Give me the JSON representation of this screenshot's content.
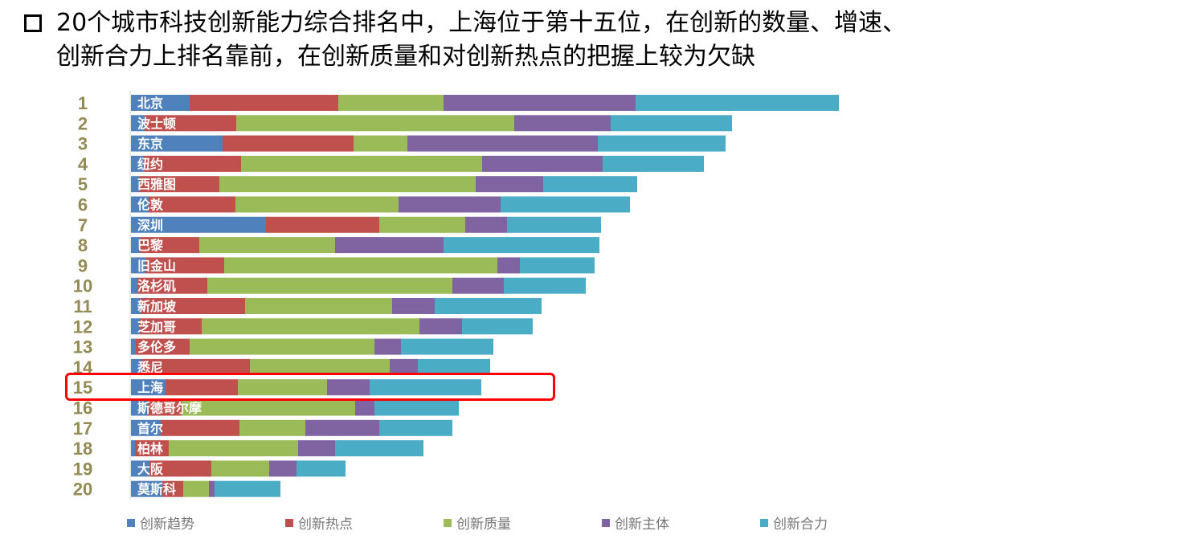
{
  "header": {
    "title_line1": "20个城市科技创新能力综合排名中，上海位于第十五位，在创新的数量、增速、",
    "title_line2": "创新合力上排名靠前，在创新质量和对创新热点的把握上较为欠缺"
  },
  "chart_data": {
    "type": "bar",
    "orientation": "horizontal",
    "stacked": true,
    "title": "",
    "xlabel": "",
    "ylabel": "",
    "grid": false,
    "legend_position": "bottom",
    "highlight": "上海",
    "ranks": [
      "1",
      "2",
      "3",
      "4",
      "5",
      "6",
      "7",
      "8",
      "9",
      "10",
      "11",
      "12",
      "13",
      "14",
      "15",
      "16",
      "17",
      "18",
      "19",
      "20"
    ],
    "categories": [
      "北京",
      "波士顿",
      "东京",
      "纽约",
      "西雅图",
      "伦敦",
      "深圳",
      "巴黎",
      "旧金山",
      "洛杉矶",
      "新加坡",
      "芝加哥",
      "多伦多",
      "悉尼",
      "上海",
      "斯德哥尔摩",
      "首尔",
      "柏林",
      "大阪",
      "莫斯科"
    ],
    "series": [
      {
        "name": "创新趋势",
        "color": "#4f81bd",
        "values": [
          73,
          17,
          114,
          16,
          10,
          22,
          168,
          11,
          18,
          8,
          12,
          11,
          6,
          14,
          43,
          20,
          37,
          5,
          23,
          39
        ]
      },
      {
        "name": "创新热点",
        "color": "#c0504d",
        "values": [
          185,
          114,
          163,
          121,
          100,
          108,
          141,
          74,
          98,
          87,
          130,
          77,
          67,
          134,
          90,
          43,
          98,
          42,
          77,
          26
        ]
      },
      {
        "name": "创新质量",
        "color": "#9bbb59",
        "values": [
          131,
          346,
          67,
          300,
          319,
          203,
          107,
          169,
          340,
          305,
          183,
          271,
          230,
          174,
          111,
          216,
          82,
          161,
          72,
          32
        ]
      },
      {
        "name": "创新主体",
        "color": "#8064a2",
        "values": [
          239,
          120,
          237,
          150,
          84,
          127,
          52,
          135,
          28,
          64,
          53,
          53,
          33,
          35,
          53,
          24,
          92,
          46,
          34,
          7
        ]
      },
      {
        "name": "创新合力",
        "color": "#4bacc6",
        "values": [
          253,
          151,
          159,
          126,
          117,
          161,
          117,
          194,
          93,
          102,
          133,
          88,
          115,
          90,
          139,
          105,
          91,
          110,
          61,
          82
        ]
      }
    ]
  }
}
